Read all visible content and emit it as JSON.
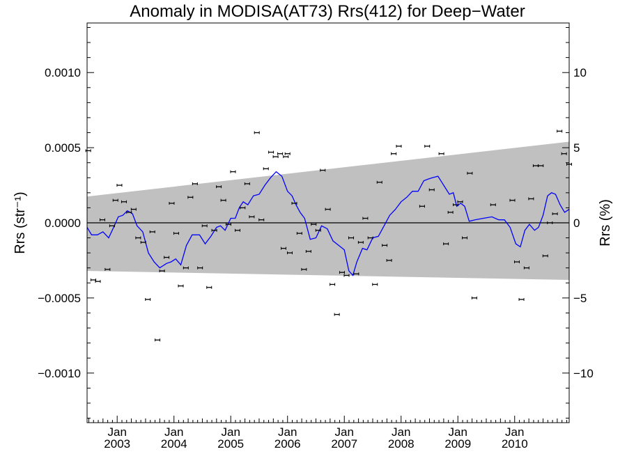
{
  "chart_data": {
    "type": "scatter",
    "title": "Anomaly in MODISA(AT73) Rrs(412) for Deep−Water",
    "ylabel_left": "Rrs (str⁻¹)",
    "ylabel_right": "Rrs (%)",
    "ylim": [
      -0.00133,
      0.00133
    ],
    "ylim_right": [
      -13.3,
      13.3
    ],
    "yticks_left": [
      {
        "value": 0.001,
        "label": "0.0010"
      },
      {
        "value": 0.0005,
        "label": "0.0005"
      },
      {
        "value": 0.0,
        "label": "0.0000"
      },
      {
        "value": -0.0005,
        "label": "−0.0005"
      },
      {
        "value": -0.001,
        "label": "−0.0010"
      }
    ],
    "yticks_right": [
      {
        "value": 10,
        "label": "10"
      },
      {
        "value": 5,
        "label": "5"
      },
      {
        "value": 0,
        "label": "0"
      },
      {
        "value": -5,
        "label": "−5"
      },
      {
        "value": -10,
        "label": "−10"
      }
    ],
    "xlim": [
      2002.47,
      2010.96
    ],
    "xticks": [
      {
        "value": 2003.0,
        "month": "Jan",
        "year": "2003"
      },
      {
        "value": 2004.0,
        "month": "Jan",
        "year": "2004"
      },
      {
        "value": 2005.0,
        "month": "Jan",
        "year": "2005"
      },
      {
        "value": 2006.0,
        "month": "Jan",
        "year": "2006"
      },
      {
        "value": 2007.0,
        "month": "Jan",
        "year": "2007"
      },
      {
        "value": 2008.0,
        "month": "Jan",
        "year": "2008"
      },
      {
        "value": 2009.0,
        "month": "Jan",
        "year": "2009"
      },
      {
        "value": 2010.0,
        "month": "Jan",
        "year": "2010"
      }
    ],
    "band": {
      "x": [
        2002.47,
        2010.96
      ],
      "upper": [
        0.000175,
        0.00054
      ],
      "lower": [
        -0.00032,
        -0.00038
      ],
      "color": "#c0c0c0"
    },
    "zero_line": true,
    "points": {
      "color": "#000000",
      "x": [
        2002.49,
        2002.58,
        2002.66,
        2002.74,
        2002.83,
        2002.91,
        2002.97,
        2003.04,
        2003.12,
        2003.21,
        2003.29,
        2003.37,
        2003.46,
        2003.54,
        2003.62,
        2003.71,
        2003.79,
        2003.87,
        2003.96,
        2004.04,
        2004.12,
        2004.21,
        2004.29,
        2004.37,
        2004.46,
        2004.54,
        2004.62,
        2004.71,
        2004.79,
        2004.87,
        2004.96,
        2005.04,
        2005.12,
        2005.21,
        2005.29,
        2005.37,
        2005.46,
        2005.54,
        2005.62,
        2005.71,
        2005.79,
        2005.87,
        2005.93,
        2006.04,
        2006.12,
        2006.21,
        2006.29,
        2006.37,
        2006.46,
        2006.54,
        2006.62,
        2006.71,
        2006.79,
        2006.87,
        2006.96,
        2007.04,
        2007.12,
        2007.21,
        2007.29,
        2007.37,
        2007.46,
        2007.54,
        2007.62,
        2007.71,
        2007.79,
        2007.87,
        2007.96,
        2008.37,
        2008.46,
        2008.54,
        2008.71,
        2008.79,
        2008.87,
        2008.96,
        2009.04,
        2009.12,
        2009.21,
        2009.29,
        2009.62,
        2009.96,
        2010.04,
        2010.12,
        2010.21,
        2010.29,
        2010.37,
        2010.46,
        2010.54,
        2010.62,
        2010.71,
        2010.79,
        2010.87,
        2010.96,
        2005.97,
        2006.0
      ],
      "y": [
        0.00048,
        -0.00038,
        -0.00039,
        2e-05,
        -0.00031,
        -2e-05,
        0.00015,
        0.00025,
        0.00014,
        7e-05,
        9e-05,
        -0.0001,
        -0.00013,
        -0.00051,
        -6e-05,
        -0.00078,
        -0.00032,
        -0.00023,
        0.00013,
        -7e-05,
        -0.00042,
        -0.0003,
        0.00017,
        0.00026,
        -0.0003,
        -2e-05,
        -0.00043,
        -5e-05,
        0.00024,
        0.00015,
        -1e-05,
        0.00034,
        -5e-05,
        0.0001,
        0.00026,
        4e-05,
        0.0006,
        2e-05,
        0.00036,
        0.00047,
        0.00044,
        0.00046,
        -0.00017,
        -0.0002,
        0.00013,
        -7e-05,
        -0.00031,
        -0.00019,
        -1e-05,
        -5e-05,
        0.00035,
        9e-05,
        -0.00041,
        -0.00061,
        -0.00033,
        -0.00035,
        -0.0001,
        -0.00034,
        -0.00013,
        3e-05,
        -0.0001,
        -0.00041,
        0.00027,
        -0.00015,
        -0.00025,
        0.00046,
        0.00051,
        0.00011,
        0.00051,
        0.00022,
        0.00046,
        -0.00014,
        7e-05,
        0.00012,
        0.00014,
        -0.0001,
        0.00033,
        -0.0005,
        0.00012,
        0.00015,
        -0.00026,
        -0.00051,
        -0.0003,
        0.00016,
        0.00038,
        0.00038,
        -0.00022,
        0.0,
        6e-05,
        0.00061,
        0.00046,
        0.00039,
        0.00044,
        0.00046
      ]
    },
    "smooth": {
      "color": "#0000ff",
      "x": [
        2002.47,
        2002.55,
        2002.65,
        2002.75,
        2002.85,
        2002.95,
        2003.02,
        2003.1,
        2003.18,
        2003.27,
        2003.35,
        2003.45,
        2003.55,
        2003.65,
        2003.75,
        2003.87,
        2003.95,
        2004.03,
        2004.12,
        2004.22,
        2004.32,
        2004.45,
        2004.55,
        2004.65,
        2004.75,
        2004.82,
        2004.9,
        2005.0,
        2005.08,
        2005.15,
        2005.22,
        2005.3,
        2005.4,
        2005.5,
        2005.6,
        2005.7,
        2005.8,
        2005.9,
        2006.0,
        2006.08,
        2006.15,
        2006.22,
        2006.3,
        2006.4,
        2006.5,
        2006.6,
        2006.7,
        2006.8,
        2006.9,
        2007.0,
        2007.08,
        2007.15,
        2007.22,
        2007.32,
        2007.4,
        2007.5,
        2007.6,
        2007.7,
        2007.8,
        2007.9,
        2008.0,
        2008.1,
        2008.2,
        2008.3,
        2008.4,
        2008.47,
        2008.55,
        2008.65,
        2008.75,
        2008.85,
        2008.92,
        2008.98,
        2009.05,
        2009.12,
        2009.2,
        2009.3,
        2009.45,
        2009.6,
        2009.72,
        2009.82,
        2009.92,
        2010.02,
        2010.1,
        2010.18,
        2010.26,
        2010.35,
        2010.42,
        2010.5,
        2010.58,
        2010.65,
        2010.72,
        2010.8,
        2010.88,
        2010.96
      ],
      "y": [
        -3e-05,
        -8e-05,
        -8e-05,
        -6e-05,
        -0.0001,
        -2e-05,
        4e-05,
        5e-05,
        8e-05,
        6e-05,
        -2e-05,
        -6e-05,
        -0.0002,
        -0.00026,
        -0.0003,
        -0.00027,
        -0.00026,
        -0.00024,
        -0.00028,
        -0.00015,
        -8e-05,
        -8e-05,
        -0.00014,
        -9e-05,
        -3e-05,
        -2e-05,
        -5e-05,
        3e-05,
        3e-05,
        0.0001,
        0.00014,
        0.00012,
        0.00018,
        0.00019,
        0.00025,
        0.0003,
        0.00034,
        0.00031,
        0.00021,
        0.00018,
        0.00012,
        7e-05,
        3e-05,
        -0.00011,
        -0.0001,
        -2e-05,
        -4e-05,
        -0.00012,
        -0.00015,
        -0.00018,
        -0.00032,
        -0.00035,
        -0.00026,
        -0.00017,
        -0.00018,
        -0.0001,
        -9e-05,
        -2e-05,
        5e-05,
        9e-05,
        0.00014,
        0.00017,
        0.00021,
        0.00021,
        0.00028,
        0.00029,
        0.0003,
        0.00031,
        0.00025,
        0.00019,
        0.0002,
        0.00011,
        0.00013,
        0.00011,
        1e-05,
        2e-05,
        3e-05,
        4e-05,
        2e-05,
        2e-05,
        -3e-05,
        -0.00014,
        -0.00016,
        -5e-05,
        -1e-05,
        -5e-05,
        -3e-05,
        5e-05,
        0.00018,
        0.0002,
        0.00019,
        0.00012,
        7e-05,
        9e-05
      ]
    }
  }
}
